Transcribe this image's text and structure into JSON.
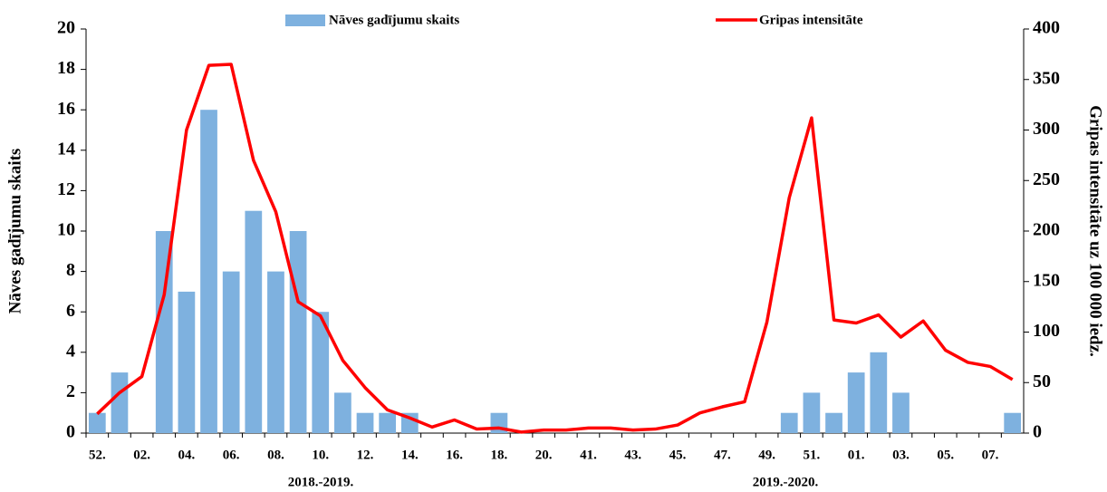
{
  "chart_data": {
    "type": "bar-line",
    "categories": [
      "52.",
      null,
      "02.",
      null,
      "04.",
      null,
      "06.",
      null,
      "08.",
      null,
      "10.",
      null,
      "12.",
      null,
      "14.",
      null,
      "16.",
      null,
      "18.",
      null,
      "20.",
      null,
      "41.",
      null,
      "43.",
      null,
      "45.",
      null,
      "47.",
      null,
      "49.",
      null,
      "51.",
      null,
      "01.",
      null,
      "03.",
      null,
      "05.",
      null,
      "07.",
      null
    ],
    "period_labels": [
      "2018.-2019.",
      "2019.-2020."
    ],
    "y_label": "Nāves gadījumu skaits",
    "y2_label": "Gripas intensitāte uz 100 000 iedz.",
    "ylim": [
      0,
      20
    ],
    "yticks": [
      0,
      2,
      4,
      6,
      8,
      10,
      12,
      14,
      16,
      18,
      20
    ],
    "y2lim": [
      0,
      400
    ],
    "y2ticks": [
      0,
      50,
      100,
      150,
      200,
      250,
      300,
      350,
      400
    ],
    "series": [
      {
        "name": "Nāves gadījumu skaits",
        "type": "bar",
        "color": "#7eb1df",
        "values": [
          1,
          3,
          0,
          10,
          7,
          16,
          8,
          11,
          8,
          10,
          6,
          2,
          1,
          1,
          1,
          0,
          0,
          0,
          1,
          0,
          0,
          0,
          0,
          0,
          0,
          0,
          0,
          0,
          0,
          0,
          0,
          1,
          2,
          1,
          3,
          4,
          2,
          0,
          0,
          0,
          0,
          1
        ]
      },
      {
        "name": "Gripas intensitāte",
        "type": "line",
        "axis": "y2",
        "color": "#ff0000",
        "values": [
          19,
          40,
          56,
          137,
          300,
          364,
          365,
          270,
          219,
          130,
          116,
          72,
          45,
          23,
          15,
          6,
          13,
          4,
          5,
          1,
          3,
          3,
          5,
          5,
          3,
          4,
          8,
          20,
          26,
          31,
          110,
          233,
          312,
          112,
          109,
          117,
          95,
          111,
          82,
          70,
          66,
          53
        ]
      }
    ]
  }
}
